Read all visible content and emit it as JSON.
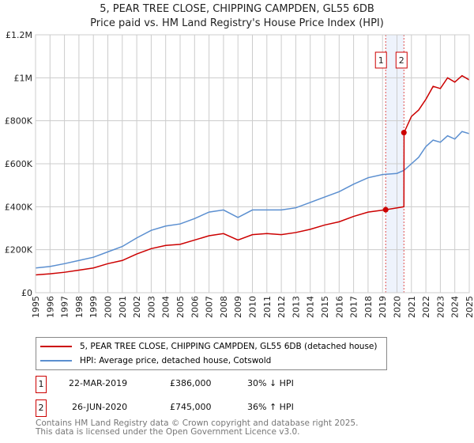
{
  "title": "5, PEAR TREE CLOSE, CHIPPING CAMPDEN, GL55 6DB",
  "subtitle": "Price paid vs. HM Land Registry's House Price Index (HPI)",
  "chart_data": {
    "type": "line",
    "title": "5, PEAR TREE CLOSE, CHIPPING CAMPDEN, GL55 6DB",
    "xlim": [
      1995,
      2025
    ],
    "ylim": [
      0,
      1200000
    ],
    "x_ticks": [
      "1995",
      "1996",
      "1997",
      "1998",
      "1999",
      "2000",
      "2001",
      "2002",
      "2003",
      "2004",
      "2005",
      "2006",
      "2007",
      "2008",
      "2009",
      "2010",
      "2011",
      "2012",
      "2013",
      "2014",
      "2015",
      "2016",
      "2017",
      "2018",
      "2019",
      "2020",
      "2021",
      "2022",
      "2023",
      "2024",
      "2025"
    ],
    "y_ticks": [
      {
        "v": 0,
        "label": "£0"
      },
      {
        "v": 200000,
        "label": "£200K"
      },
      {
        "v": 400000,
        "label": "£400K"
      },
      {
        "v": 600000,
        "label": "£600K"
      },
      {
        "v": 800000,
        "label": "£800K"
      },
      {
        "v": 1000000,
        "label": "£1M"
      },
      {
        "v": 1200000,
        "label": "£1.2M"
      }
    ],
    "grid": true,
    "series": [
      {
        "name": "5, PEAR TREE CLOSE, CHIPPING CAMPDEN, GL55 6DB (detached house)",
        "color": "#cc0000",
        "x": [
          1995,
          1996,
          1997,
          1998,
          1999,
          2000,
          2001,
          2002,
          2003,
          2004,
          2005,
          2006,
          2007,
          2008,
          2009,
          2010,
          2011,
          2012,
          2013,
          2014,
          2015,
          2016,
          2017,
          2018,
          2019.22,
          2020.48,
          2020.49,
          2021,
          2021.5,
          2022,
          2022.5,
          2023,
          2023.5,
          2024,
          2024.5,
          2025
        ],
        "y": [
          83000,
          88000,
          95000,
          105000,
          115000,
          135000,
          150000,
          180000,
          205000,
          220000,
          225000,
          245000,
          265000,
          275000,
          245000,
          270000,
          275000,
          270000,
          280000,
          295000,
          315000,
          330000,
          355000,
          375000,
          386000,
          400000,
          745000,
          820000,
          850000,
          900000,
          960000,
          950000,
          1000000,
          980000,
          1010000,
          990000
        ]
      },
      {
        "name": "HPI: Average price, detached house, Cotswold",
        "color": "#5b8fd0",
        "x": [
          1995,
          1996,
          1997,
          1998,
          1999,
          2000,
          2001,
          2002,
          2003,
          2004,
          2005,
          2006,
          2007,
          2008,
          2009,
          2010,
          2011,
          2012,
          2013,
          2014,
          2015,
          2016,
          2017,
          2018,
          2019,
          2020,
          2020.5,
          2021,
          2021.5,
          2022,
          2022.5,
          2023,
          2023.5,
          2024,
          2024.5,
          2025
        ],
        "y": [
          115000,
          122000,
          135000,
          150000,
          165000,
          190000,
          215000,
          255000,
          290000,
          310000,
          320000,
          345000,
          375000,
          385000,
          350000,
          385000,
          385000,
          385000,
          395000,
          420000,
          445000,
          470000,
          505000,
          535000,
          550000,
          555000,
          570000,
          600000,
          630000,
          680000,
          710000,
          700000,
          730000,
          715000,
          750000,
          740000
        ]
      }
    ],
    "annotations": [
      {
        "label": "1",
        "x": 2019.22,
        "y": 386000
      },
      {
        "label": "2",
        "x": 2020.48,
        "y": 745000
      }
    ],
    "legend": "bottom"
  },
  "legend": {
    "red": "5, PEAR TREE CLOSE, CHIPPING CAMPDEN, GL55 6DB (detached house)",
    "blue": "HPI: Average price, detached house, Cotswold"
  },
  "transactions": [
    {
      "num": "1",
      "date": "22-MAR-2019",
      "price": "£386,000",
      "hpi": "30% ↓ HPI"
    },
    {
      "num": "2",
      "date": "26-JUN-2020",
      "price": "£745,000",
      "hpi": "36% ↑ HPI"
    }
  ],
  "footer": [
    "Contains HM Land Registry data © Crown copyright and database right 2025.",
    "This data is licensed under the Open Government Licence v3.0."
  ]
}
